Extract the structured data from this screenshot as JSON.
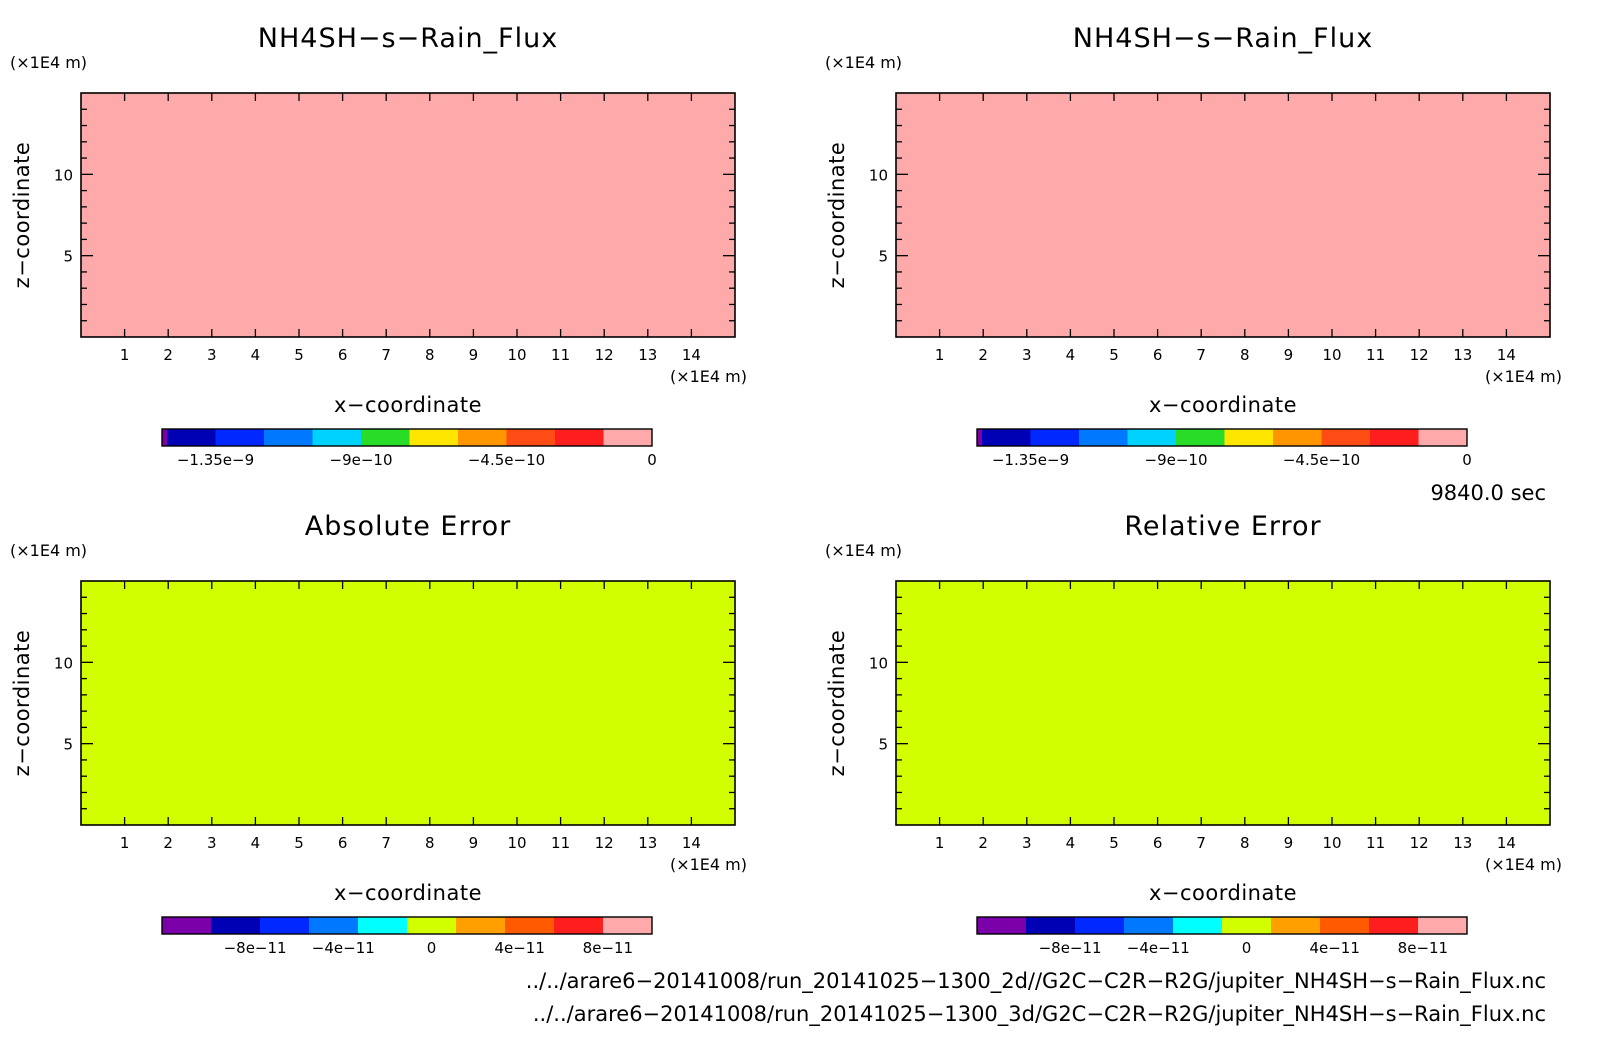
{
  "chart_data": [
    {
      "type": "heatmap",
      "title": "NH4SH−s−Rain_Flux",
      "xlabel": "x−coordinate",
      "ylabel": "z−coordinate",
      "x_unit": "(×1E4 m)",
      "y_unit": "(×1E4 m)",
      "xlim": [
        0,
        15
      ],
      "ylim": [
        0,
        15
      ],
      "x_ticks": [
        "1",
        "2",
        "3",
        "4",
        "5",
        "6",
        "7",
        "8",
        "9",
        "10",
        "11",
        "12",
        "13",
        "14"
      ],
      "y_ticks": [
        "5",
        "10"
      ],
      "field_color": "#ffaaaa",
      "field_value": 0,
      "colorbar": {
        "colors": [
          "#7b00aa",
          "#0000b4",
          "#0028ff",
          "#0078ff",
          "#00d2ff",
          "#28dc28",
          "#ffe600",
          "#ff9600",
          "#ff4b14",
          "#ff1e1e",
          "#ffaaaa"
        ],
        "tick_labels": [
          "−1.35e−9",
          "−9e−10",
          "−4.5e−10",
          "0"
        ],
        "tick_values": [
          -1.35e-09,
          -9e-10,
          -4.5e-10,
          0
        ],
        "range": [
          -1.5e-09,
          0
        ]
      }
    },
    {
      "type": "heatmap",
      "title": "NH4SH−s−Rain_Flux",
      "xlabel": "x−coordinate",
      "ylabel": "z−coordinate",
      "x_unit": "(×1E4 m)",
      "y_unit": "(×1E4 m)",
      "xlim": [
        0,
        15
      ],
      "ylim": [
        0,
        15
      ],
      "x_ticks": [
        "1",
        "2",
        "3",
        "4",
        "5",
        "6",
        "7",
        "8",
        "9",
        "10",
        "11",
        "12",
        "13",
        "14"
      ],
      "y_ticks": [
        "5",
        "10"
      ],
      "field_color": "#ffaaaa",
      "field_value": 0,
      "colorbar": {
        "colors": [
          "#7b00aa",
          "#0000b4",
          "#0028ff",
          "#0078ff",
          "#00d2ff",
          "#28dc28",
          "#ffe600",
          "#ff9600",
          "#ff4b14",
          "#ff1e1e",
          "#ffaaaa"
        ],
        "tick_labels": [
          "−1.35e−9",
          "−9e−10",
          "−4.5e−10",
          "0"
        ],
        "tick_values": [
          -1.35e-09,
          -9e-10,
          -4.5e-10,
          0
        ],
        "range": [
          -1.5e-09,
          0
        ]
      }
    },
    {
      "type": "heatmap",
      "title": "Absolute Error",
      "xlabel": "x−coordinate",
      "ylabel": "z−coordinate",
      "x_unit": "(×1E4 m)",
      "y_unit": "(×1E4 m)",
      "xlim": [
        0,
        15
      ],
      "ylim": [
        0,
        15
      ],
      "x_ticks": [
        "1",
        "2",
        "3",
        "4",
        "5",
        "6",
        "7",
        "8",
        "9",
        "10",
        "11",
        "12",
        "13",
        "14"
      ],
      "y_ticks": [
        "5",
        "10"
      ],
      "field_color": "#d2ff00",
      "field_value": 0,
      "colorbar": {
        "colors": [
          "#7b00aa",
          "#0000b4",
          "#0028ff",
          "#0078ff",
          "#00ffff",
          "#d2ff00",
          "#ffa000",
          "#ff5a00",
          "#ff1e1e",
          "#ffaaaa"
        ],
        "tick_labels": [
          "−8e−11",
          "−4e−11",
          "0",
          "4e−11",
          "8e−11"
        ],
        "tick_values": [
          -8e-11,
          -4e-11,
          0,
          4e-11,
          8e-11
        ],
        "range": [
          -1e-10,
          1e-10
        ]
      }
    },
    {
      "type": "heatmap",
      "title": "Relative Error",
      "xlabel": "x−coordinate",
      "ylabel": "z−coordinate",
      "x_unit": "(×1E4 m)",
      "y_unit": "(×1E4 m)",
      "xlim": [
        0,
        15
      ],
      "ylim": [
        0,
        15
      ],
      "x_ticks": [
        "1",
        "2",
        "3",
        "4",
        "5",
        "6",
        "7",
        "8",
        "9",
        "10",
        "11",
        "12",
        "13",
        "14"
      ],
      "y_ticks": [
        "5",
        "10"
      ],
      "field_color": "#d2ff00",
      "field_value": 0,
      "colorbar": {
        "colors": [
          "#7b00aa",
          "#0000b4",
          "#0028ff",
          "#0078ff",
          "#00ffff",
          "#d2ff00",
          "#ffa000",
          "#ff5a00",
          "#ff1e1e",
          "#ffaaaa"
        ],
        "tick_labels": [
          "−8e−11",
          "−4e−11",
          "0",
          "4e−11",
          "8e−11"
        ],
        "tick_values": [
          -8e-11,
          -4e-11,
          0,
          4e-11,
          8e-11
        ],
        "range": [
          -1e-10,
          1e-10
        ]
      }
    }
  ],
  "time_label": "9840.0 sec",
  "file_paths": [
    "../../arare6−20141008/run_20141025−1300_2d//G2C−C2R−R2G/jupiter_NH4SH−s−Rain_Flux.nc",
    "../../arare6−20141008/run_20141025−1300_3d/G2C−C2R−R2G/jupiter_NH4SH−s−Rain_Flux.nc"
  ]
}
